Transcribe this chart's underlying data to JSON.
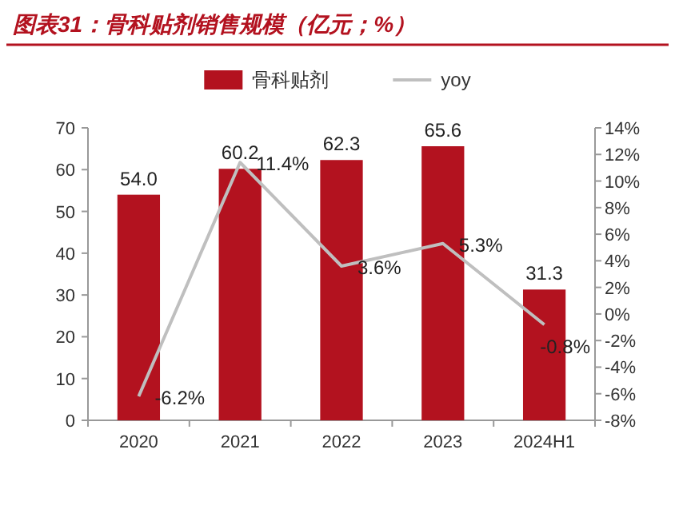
{
  "chart_data": {
    "type": "bar",
    "title": "图表31：骨科贴剂销售规模（亿元；%）",
    "categories": [
      "2020",
      "2021",
      "2022",
      "2023",
      "2024H1"
    ],
    "series": [
      {
        "name": "骨科贴剂",
        "color": "#b3121f",
        "values": [
          54.0,
          60.2,
          62.3,
          65.6,
          31.3
        ],
        "value_labels": [
          "54.0",
          "60.2",
          "62.3",
          "65.6",
          "31.3"
        ]
      },
      {
        "name": "yoy",
        "type": "line",
        "axis": "y2",
        "color": "#bfbfbf",
        "values": [
          -6.2,
          11.4,
          3.6,
          5.3,
          -0.8
        ],
        "value_labels": [
          "-6.2%",
          "11.4%",
          "3.6%",
          "5.3%",
          "-0.8%"
        ]
      }
    ],
    "ylim": [
      0,
      70
    ],
    "yticks": [
      0,
      10,
      20,
      30,
      40,
      50,
      60,
      70
    ],
    "y2lim": [
      -8,
      14
    ],
    "y2ticks": [
      {
        "value": -8,
        "label": "-8%"
      },
      {
        "value": -6,
        "label": "-6%"
      },
      {
        "value": -4,
        "label": "-4%"
      },
      {
        "value": -2,
        "label": "-2%"
      },
      {
        "value": 0,
        "label": "0%"
      },
      {
        "value": 2,
        "label": "2%"
      },
      {
        "value": 4,
        "label": "4%"
      },
      {
        "value": 6,
        "label": "6%"
      },
      {
        "value": 8,
        "label": "8%"
      },
      {
        "value": 10,
        "label": "10%"
      },
      {
        "value": 12,
        "label": "12%"
      },
      {
        "value": 14,
        "label": "14%"
      }
    ],
    "legend": "top",
    "grid": false
  }
}
